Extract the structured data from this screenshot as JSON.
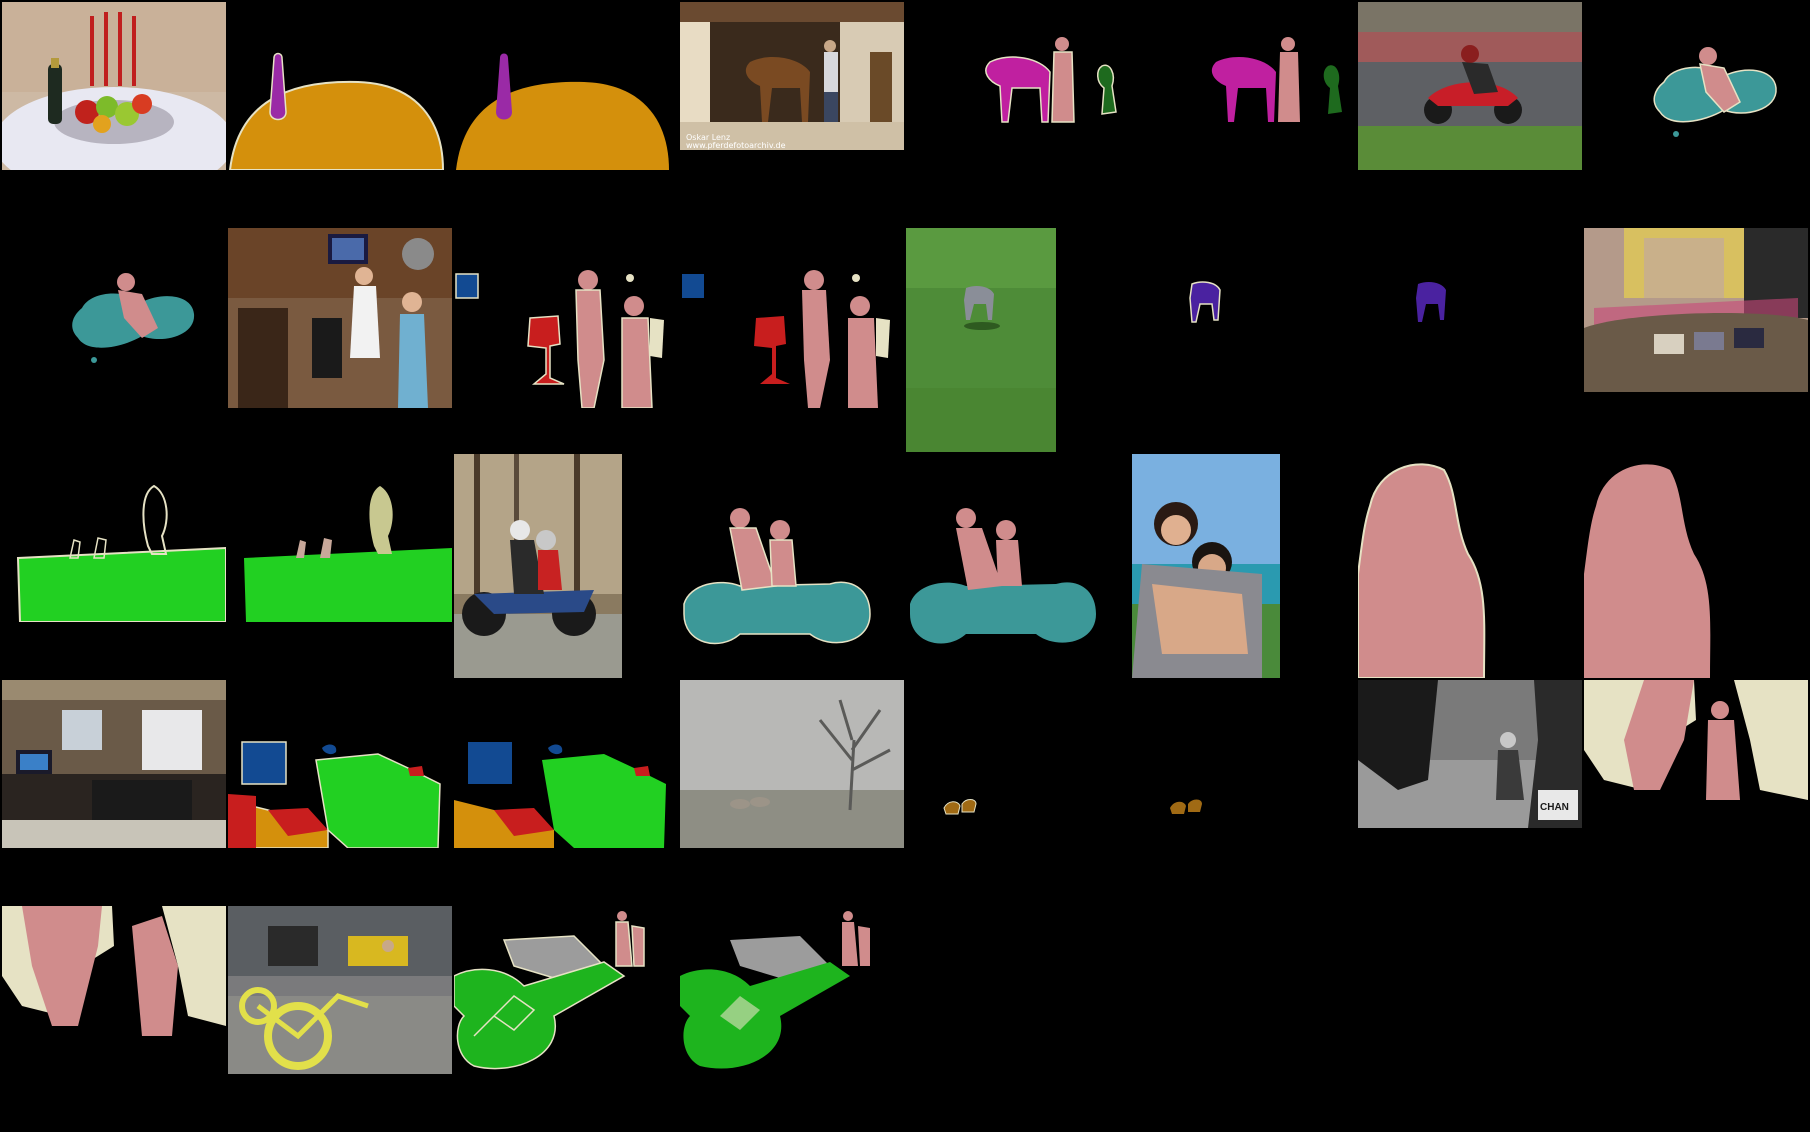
{
  "grid": {
    "title": "",
    "rows": 5,
    "columns": 8,
    "background": "#000000"
  },
  "photo_overlays": {
    "horse_watermark_line1": "Oskar Lenz",
    "horse_watermark_line2": "www.pferdefotoarchiv.de",
    "shop_bag_text": "CHAN"
  },
  "classes": {
    "person": "#d08c8c",
    "bottle": "#9a2aa6",
    "dining_table": "#d4900c",
    "horse": "#c020a0",
    "potted_plant": "#1e6a1e",
    "motorbike": "#3c9898",
    "chair": "#c81e1e",
    "tv_monitor": "#124a92",
    "dog": "#4a22a0",
    "sheep": "#a06a14",
    "bicycle": "#1eb41e",
    "background_green": "#22d022",
    "car": "#9c9c9c",
    "boundary": "#e6e2c4"
  }
}
